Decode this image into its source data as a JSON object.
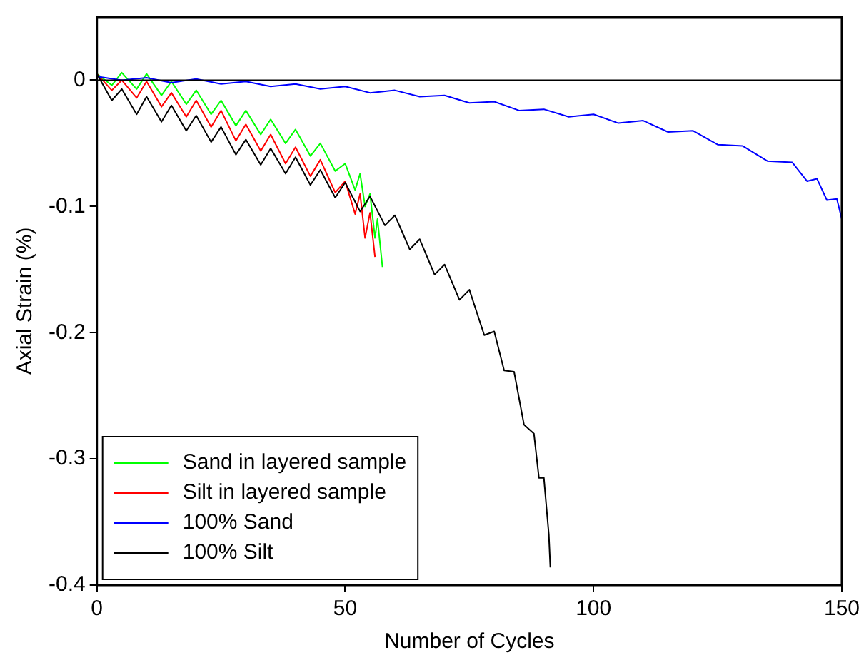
{
  "chart_data": {
    "type": "line",
    "xlabel": "Number of Cycles",
    "ylabel": "Axial Strain (%)",
    "xlim": [
      0,
      150
    ],
    "xticks": [
      0,
      50,
      100,
      150
    ],
    "ylim": [
      -0.4,
      0.05
    ],
    "yticks": [
      -0.4,
      -0.3,
      -0.2,
      -0.1,
      0
    ],
    "grid": false,
    "legend": "bottom left",
    "marker": "none",
    "line_style": "solid",
    "ref_lines": [
      {
        "axis": "y",
        "value": 0,
        "color": "#000000"
      }
    ],
    "series": [
      {
        "name": "Sand in layered sample",
        "color": "#00ff00",
        "x": [
          0,
          3,
          5,
          8,
          10,
          13,
          15,
          18,
          20,
          23,
          25,
          28,
          30,
          33,
          35,
          38,
          40,
          43,
          45,
          48,
          50,
          52,
          53,
          54,
          55,
          56,
          56.5,
          57.5
        ],
        "values": [
          0.005,
          -0.004,
          0.006,
          -0.007,
          0.005,
          -0.012,
          -0.001,
          -0.019,
          -0.008,
          -0.027,
          -0.016,
          -0.036,
          -0.024,
          -0.043,
          -0.031,
          -0.05,
          -0.039,
          -0.06,
          -0.05,
          -0.072,
          -0.066,
          -0.087,
          -0.074,
          -0.1,
          -0.09,
          -0.125,
          -0.11,
          -0.148
        ]
      },
      {
        "name": "Silt in layered sample",
        "color": "#ff0000",
        "x": [
          0,
          3,
          5,
          8,
          10,
          13,
          15,
          18,
          20,
          23,
          25,
          28,
          30,
          33,
          35,
          38,
          40,
          43,
          45,
          48,
          50,
          52,
          53,
          54,
          55,
          56
        ],
        "values": [
          0.005,
          -0.008,
          0,
          -0.014,
          -0.001,
          -0.021,
          -0.01,
          -0.029,
          -0.016,
          -0.037,
          -0.024,
          -0.048,
          -0.035,
          -0.056,
          -0.043,
          -0.066,
          -0.053,
          -0.076,
          -0.063,
          -0.089,
          -0.08,
          -0.106,
          -0.09,
          -0.125,
          -0.105,
          -0.14
        ]
      },
      {
        "name": "100% Sand",
        "color": "#0000ff",
        "x": [
          0,
          5,
          10,
          15,
          20,
          25,
          30,
          35,
          40,
          45,
          50,
          55,
          60,
          65,
          70,
          75,
          80,
          85,
          90,
          95,
          100,
          105,
          110,
          115,
          120,
          125,
          130,
          135,
          140,
          143,
          145,
          147,
          149,
          150
        ],
        "values": [
          0.003,
          0,
          0.002,
          -0.002,
          0.001,
          -0.003,
          -0.001,
          -0.005,
          -0.003,
          -0.007,
          -0.005,
          -0.01,
          -0.008,
          -0.013,
          -0.012,
          -0.018,
          -0.017,
          -0.024,
          -0.023,
          -0.029,
          -0.027,
          -0.034,
          -0.032,
          -0.041,
          -0.04,
          -0.051,
          -0.052,
          -0.064,
          -0.065,
          -0.08,
          -0.078,
          -0.095,
          -0.094,
          -0.11
        ]
      },
      {
        "name": "100% Silt",
        "color": "#000000",
        "x": [
          0,
          3,
          5,
          8,
          10,
          13,
          15,
          18,
          20,
          23,
          25,
          28,
          30,
          33,
          35,
          38,
          40,
          43,
          45,
          48,
          50,
          53,
          55,
          58,
          60,
          63,
          65,
          68,
          70,
          73,
          75,
          78,
          80,
          82,
          84,
          86,
          88,
          89,
          90,
          91,
          91.3
        ],
        "values": [
          0.005,
          -0.016,
          -0.007,
          -0.027,
          -0.013,
          -0.033,
          -0.02,
          -0.04,
          -0.028,
          -0.049,
          -0.037,
          -0.059,
          -0.047,
          -0.067,
          -0.054,
          -0.074,
          -0.061,
          -0.083,
          -0.071,
          -0.093,
          -0.081,
          -0.104,
          -0.092,
          -0.115,
          -0.107,
          -0.134,
          -0.126,
          -0.154,
          -0.146,
          -0.174,
          -0.166,
          -0.202,
          -0.199,
          -0.23,
          -0.231,
          -0.273,
          -0.28,
          -0.315,
          -0.315,
          -0.36,
          -0.386
        ]
      }
    ]
  }
}
